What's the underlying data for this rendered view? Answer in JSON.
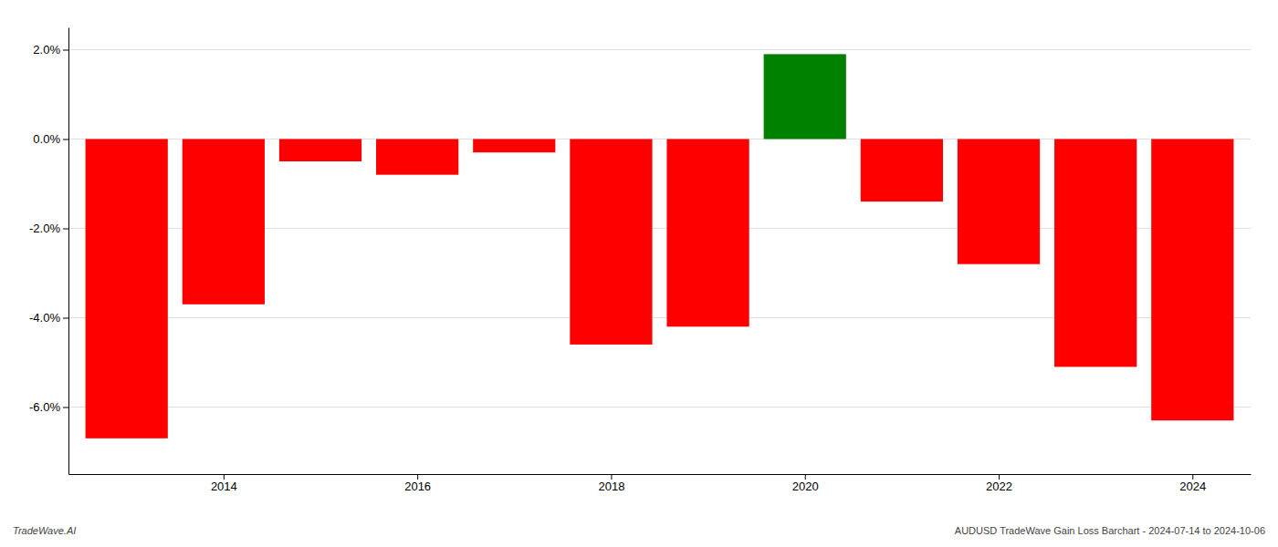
{
  "chart_data": {
    "type": "bar",
    "x": [
      2013,
      2014,
      2015,
      2016,
      2017,
      2018,
      2019,
      2020,
      2021,
      2022,
      2023,
      2024
    ],
    "values": [
      -0.067,
      -0.037,
      -0.005,
      -0.008,
      -0.003,
      -0.046,
      -0.042,
      0.019,
      -0.014,
      -0.028,
      -0.051,
      -0.063
    ],
    "colors": [
      "red",
      "red",
      "red",
      "red",
      "red",
      "red",
      "red",
      "green",
      "red",
      "red",
      "red",
      "red"
    ],
    "xlim": [
      2012.4,
      2024.6
    ],
    "xticks": [
      2014,
      2016,
      2018,
      2020,
      2022,
      2024
    ],
    "ylim": [
      -0.075,
      0.025
    ],
    "yticks": [
      {
        "value": -0.06,
        "label": "-6.0%"
      },
      {
        "value": -0.04,
        "label": "-4.0%"
      },
      {
        "value": -0.02,
        "label": "-2.0%"
      },
      {
        "value": 0.0,
        "label": "0.0%"
      },
      {
        "value": 0.02,
        "label": "2.0%"
      }
    ],
    "grid": true,
    "annotations": [
      "TradeWave.AI",
      "AUDUSD TradeWave Gain Loss Barchart - 2024-07-14 to 2024-10-06"
    ]
  }
}
